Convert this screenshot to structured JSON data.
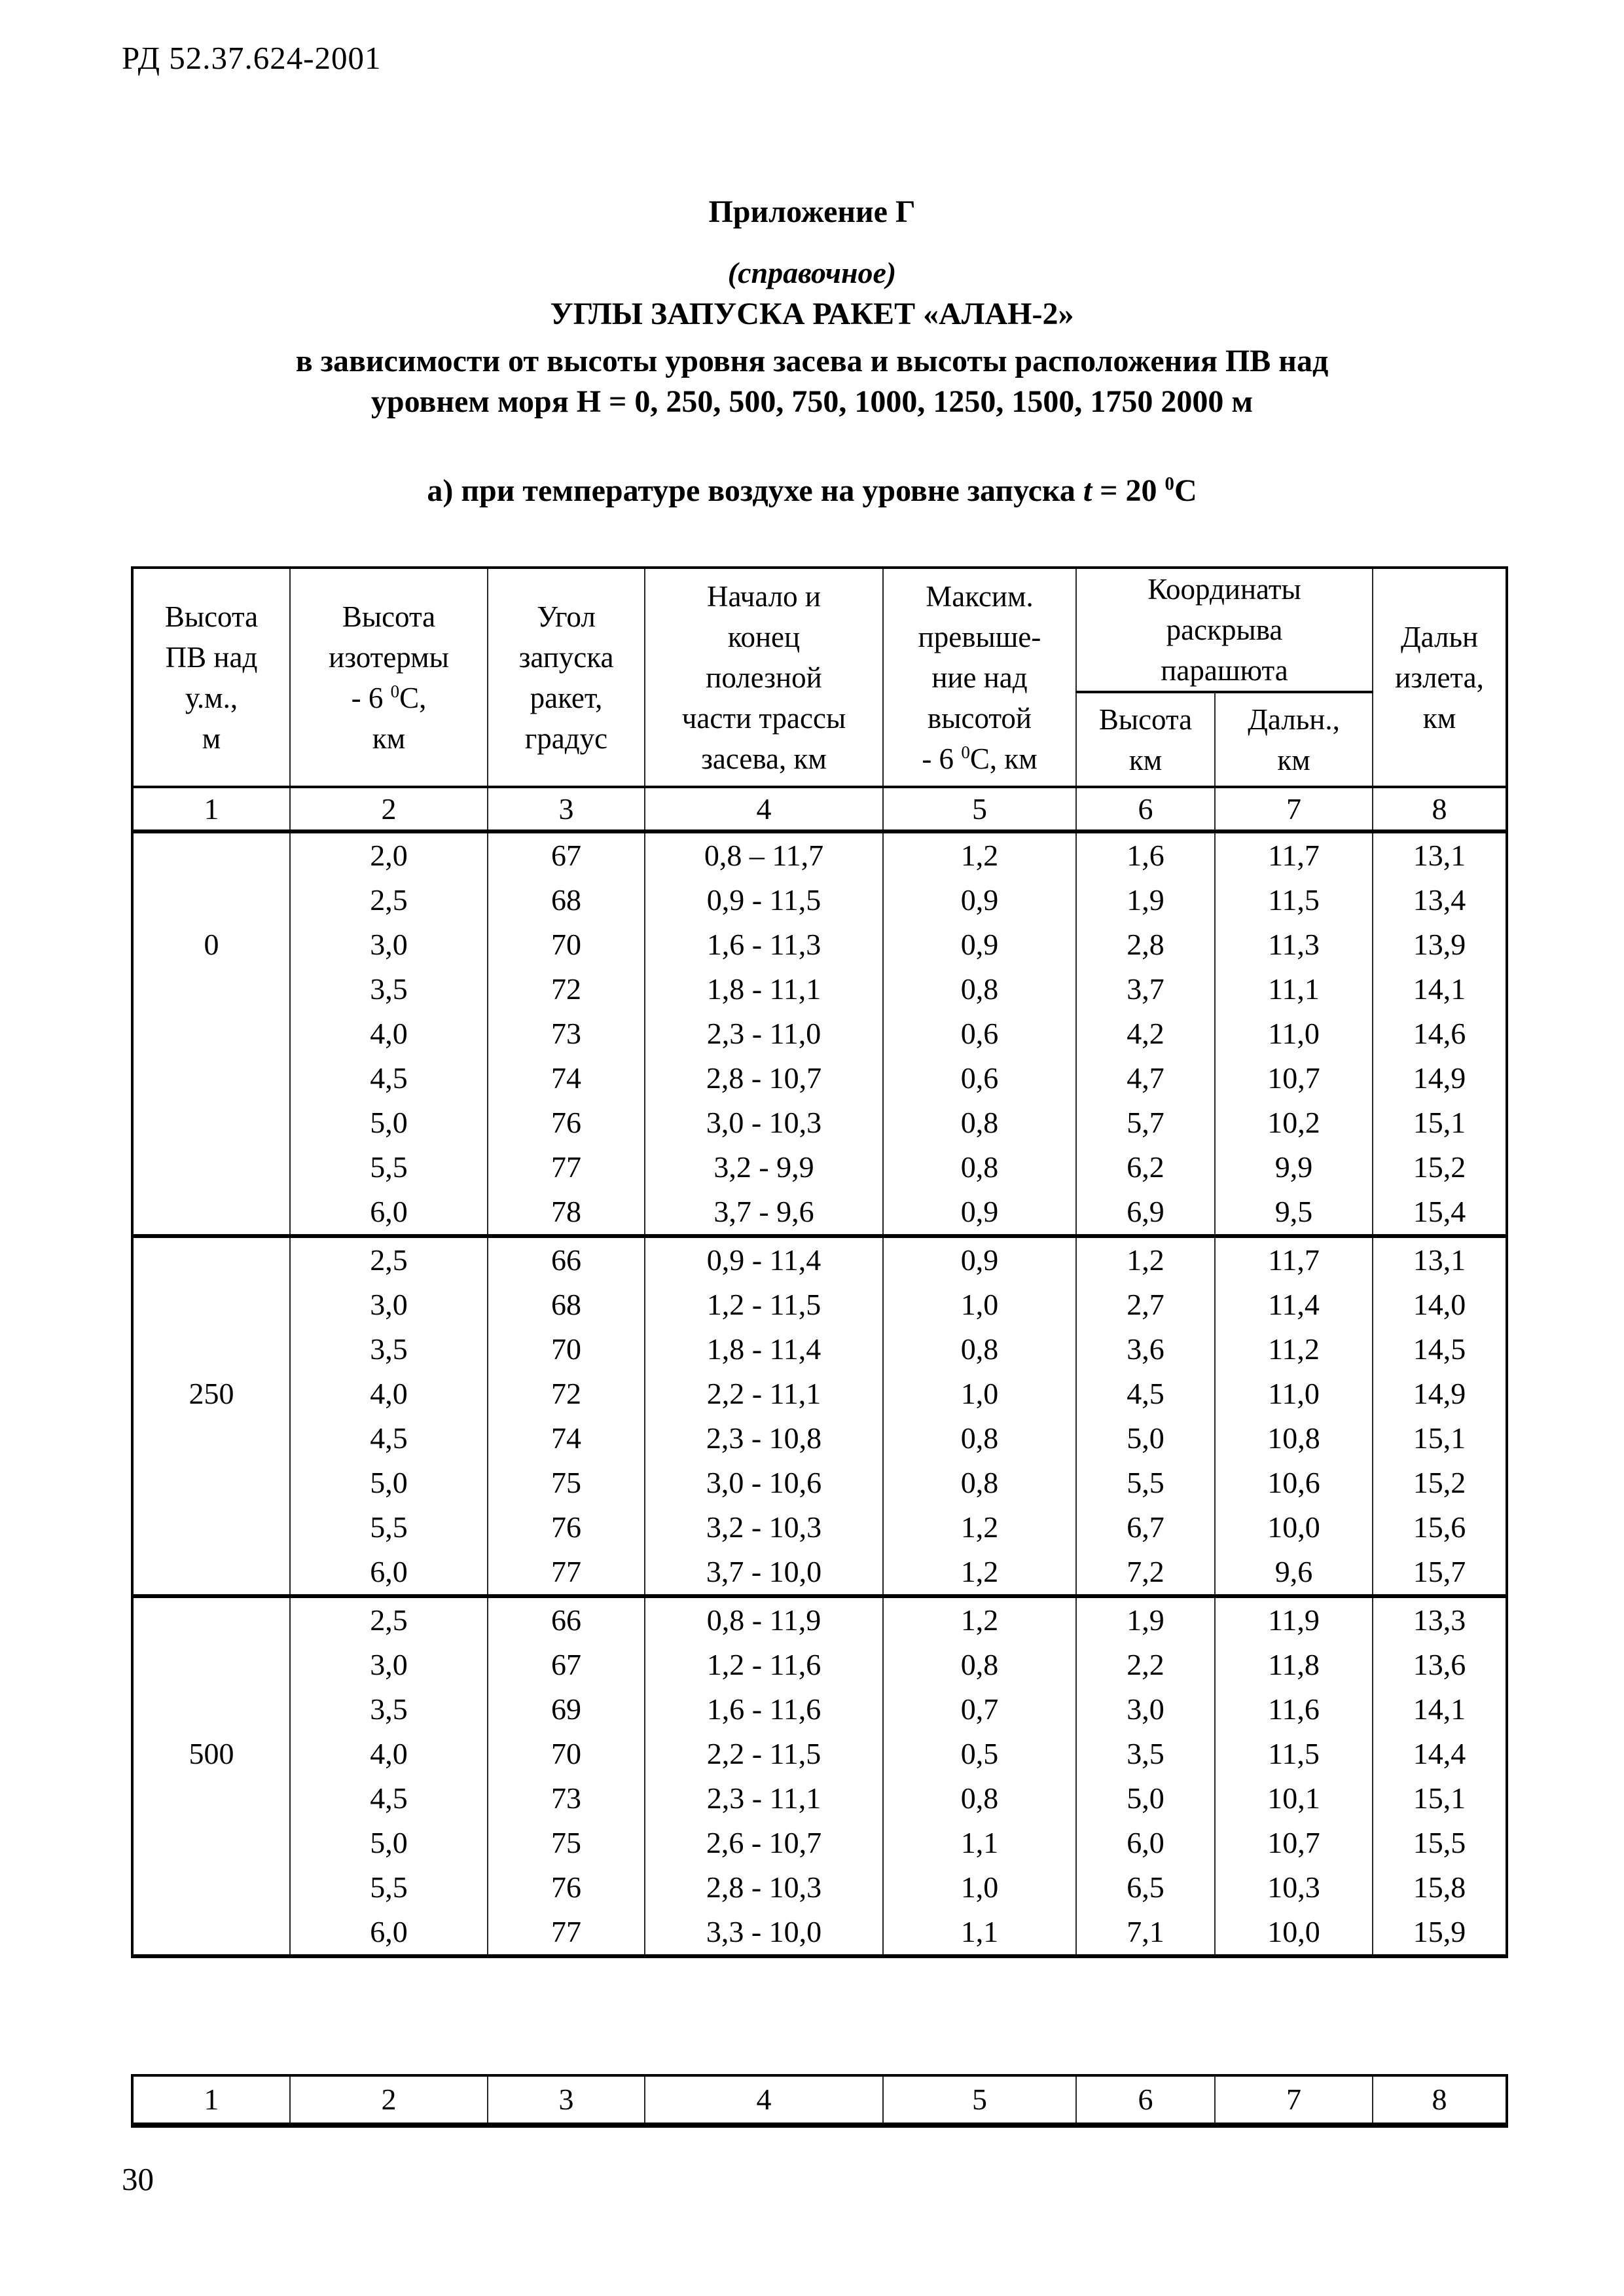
{
  "page": {
    "doc_code": "РД 52.37.624-2001",
    "page_number": "30"
  },
  "title": {
    "appendix": "Приложение Г",
    "note": "(справочное)",
    "heading": "УГЛЫ ЗАПУСКА РАКЕТ «АЛАН-2»",
    "subheading_line1": "в зависимости от высоты уровня засева и высоты расположения ПВ над",
    "subheading_line2": "уровнем моря Н = 0, 250, 500, 750, 1000, 1250, 1500, 1750 2000 м",
    "case_label": "а) при температуре воздухе на уровне запуска *t* = 20 ^{0}С"
  },
  "table": {
    "headers": {
      "col1": "Высота\nПВ над\nу.м.,\nм",
      "col2": "Высота\nизотермы\n- 6 ^{0}С,\nкм",
      "col3": "Угол\nзапуска\nракет,\nградус",
      "col4": "Начало и\nконец\nполезной\nчасти трассы\nзасева, км",
      "col5": "Максим.\nпревыше-\nние над\nвысотой\n- 6 ^{0}С, км",
      "col67_group": "Координаты\nраскрыва\nпарашюта",
      "col6": "Высота\nкм",
      "col7": "Дальн.,\nкм",
      "col8": "Дальн\nизлета,\nкм"
    },
    "column_numbers": [
      "1",
      "2",
      "3",
      "4",
      "5",
      "6",
      "7",
      "8"
    ],
    "groups": [
      {
        "height_pv": "0",
        "label_row": 2,
        "rows": [
          [
            "2,0",
            "67",
            "0,8 – 11,7",
            "1,2",
            "1,6",
            "11,7",
            "13,1"
          ],
          [
            "2,5",
            "68",
            "0,9 - 11,5",
            "0,9",
            "1,9",
            "11,5",
            "13,4"
          ],
          [
            "3,0",
            "70",
            "1,6 - 11,3",
            "0,9",
            "2,8",
            "11,3",
            "13,9"
          ],
          [
            "3,5",
            "72",
            "1,8 - 11,1",
            "0,8",
            "3,7",
            "11,1",
            "14,1"
          ],
          [
            "4,0",
            "73",
            "2,3 - 11,0",
            "0,6",
            "4,2",
            "11,0",
            "14,6"
          ],
          [
            "4,5",
            "74",
            "2,8 - 10,7",
            "0,6",
            "4,7",
            "10,7",
            "14,9"
          ],
          [
            "5,0",
            "76",
            "3,0 - 10,3",
            "0,8",
            "5,7",
            "10,2",
            "15,1"
          ],
          [
            "5,5",
            "77",
            "3,2 - 9,9",
            "0,8",
            "6,2",
            "9,9",
            "15,2"
          ],
          [
            "6,0",
            "78",
            "3,7 - 9,6",
            "0,9",
            "6,9",
            "9,5",
            "15,4"
          ]
        ]
      },
      {
        "height_pv": "250",
        "label_row": 3,
        "rows": [
          [
            "2,5",
            "66",
            "0,9 - 11,4",
            "0,9",
            "1,2",
            "11,7",
            "13,1"
          ],
          [
            "3,0",
            "68",
            "1,2 - 11,5",
            "1,0",
            "2,7",
            "11,4",
            "14,0"
          ],
          [
            "3,5",
            "70",
            "1,8 - 11,4",
            "0,8",
            "3,6",
            "11,2",
            "14,5"
          ],
          [
            "4,0",
            "72",
            "2,2 - 11,1",
            "1,0",
            "4,5",
            "11,0",
            "14,9"
          ],
          [
            "4,5",
            "74",
            "2,3 - 10,8",
            "0,8",
            "5,0",
            "10,8",
            "15,1"
          ],
          [
            "5,0",
            "75",
            "3,0 - 10,6",
            "0,8",
            "5,5",
            "10,6",
            "15,2"
          ],
          [
            "5,5",
            "76",
            "3,2 - 10,3",
            "1,2",
            "6,7",
            "10,0",
            "15,6"
          ],
          [
            "6,0",
            "77",
            "3,7 - 10,0",
            "1,2",
            "7,2",
            "9,6",
            "15,7"
          ]
        ]
      },
      {
        "height_pv": "500",
        "label_row": 3,
        "rows": [
          [
            "2,5",
            "66",
            "0,8 - 11,9",
            "1,2",
            "1,9",
            "11,9",
            "13,3"
          ],
          [
            "3,0",
            "67",
            "1,2 - 11,6",
            "0,8",
            "2,2",
            "11,8",
            "13,6"
          ],
          [
            "3,5",
            "69",
            "1,6 - 11,6",
            "0,7",
            "3,0",
            "11,6",
            "14,1"
          ],
          [
            "4,0",
            "70",
            "2,2 - 11,5",
            "0,5",
            "3,5",
            "11,5",
            "14,4"
          ],
          [
            "4,5",
            "73",
            "2,3 - 11,1",
            "0,8",
            "5,0",
            "10,1",
            "15,1"
          ],
          [
            "5,0",
            "75",
            "2,6 - 10,7",
            "1,1",
            "6,0",
            "10,7",
            "15,5"
          ],
          [
            "5,5",
            "76",
            "2,8 - 10,3",
            "1,0",
            "6,5",
            "10,3",
            "15,8"
          ],
          [
            "6,0",
            "77",
            "3,3 - 10,0",
            "1,1",
            "7,1",
            "10,0",
            "15,9"
          ]
        ]
      }
    ]
  },
  "footer_strip": {
    "column_numbers": [
      "1",
      "2",
      "3",
      "4",
      "5",
      "6",
      "7",
      "8"
    ]
  }
}
